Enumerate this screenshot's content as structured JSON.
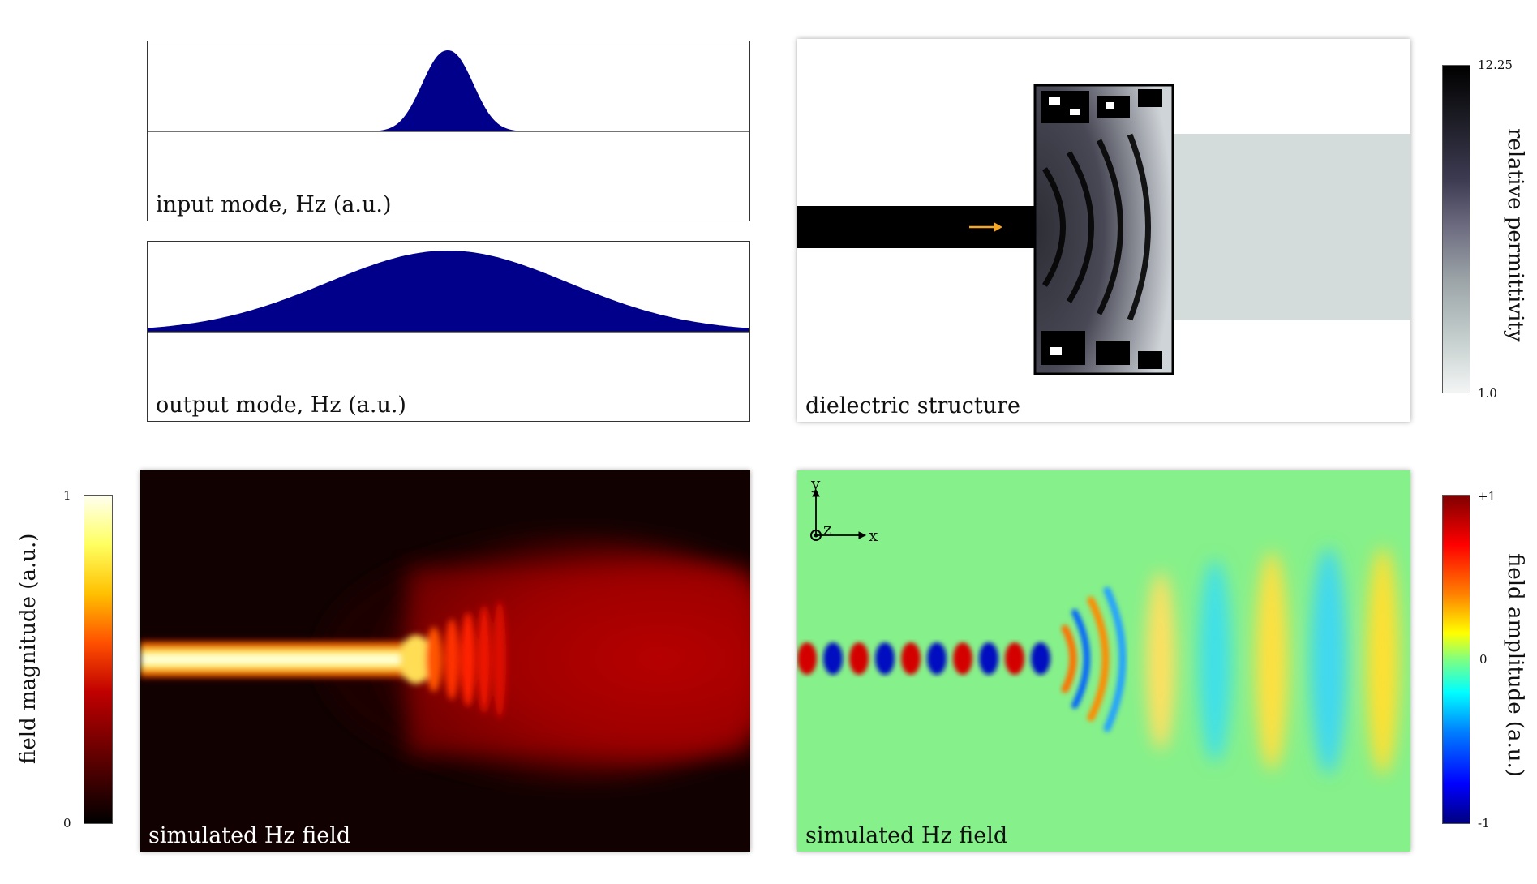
{
  "panels": {
    "input_mode": {
      "title": "input mode, Hz (a.u.)",
      "fill_color": "#00008b"
    },
    "output_mode": {
      "title": "output mode, Hz (a.u.)",
      "fill_color": "#00008b"
    },
    "dielectric": {
      "title": "dielectric structure",
      "arrow_color": "#f5a623"
    },
    "field_magnitude": {
      "title": "simulated Hz field"
    },
    "field_amplitude": {
      "title": "simulated Hz field"
    }
  },
  "colorbars": {
    "permittivity": {
      "label": "relative permittivity",
      "max": "12.25",
      "min": "1.0"
    },
    "magnitude": {
      "label": "field magnitude (a.u.)",
      "max": "1",
      "min": "0"
    },
    "amplitude": {
      "label": "field amplitude (a.u.)",
      "max": "+1",
      "mid": "0",
      "min": "-1"
    }
  },
  "axes": {
    "y": "y",
    "z": "z",
    "x": "x"
  }
}
